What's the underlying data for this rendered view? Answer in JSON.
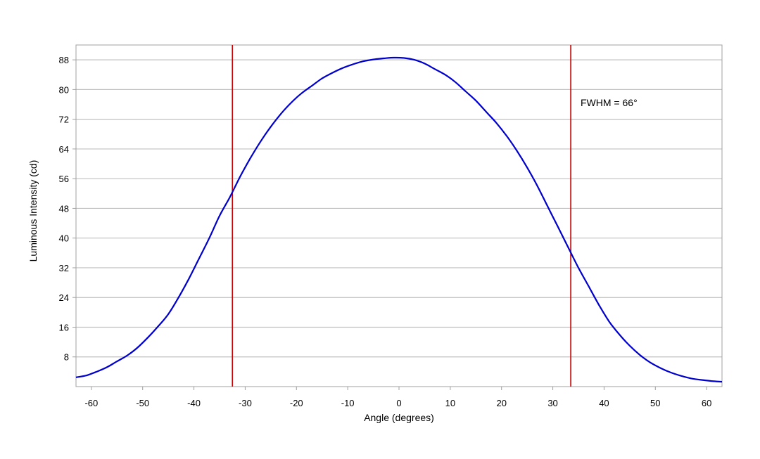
{
  "chart_data": {
    "type": "line",
    "xlabel": "Angle (degrees)",
    "ylabel": "Luminous Intensity (cd)",
    "xlim": [
      -63,
      63
    ],
    "ylim": [
      0,
      92
    ],
    "x_ticks": [
      -60,
      -50,
      -40,
      -30,
      -20,
      -10,
      0,
      10,
      20,
      30,
      40,
      50,
      60
    ],
    "y_ticks": [
      8,
      16,
      24,
      32,
      40,
      48,
      56,
      64,
      72,
      80,
      88
    ],
    "grid": "horizontal",
    "series": [
      {
        "color": "#0000cc",
        "x": [
          -63,
          -61,
          -59,
          -57,
          -55,
          -53,
          -51,
          -49,
          -47,
          -45,
          -43,
          -41,
          -39,
          -37,
          -35,
          -33,
          -31,
          -29,
          -27,
          -25,
          -23,
          -21,
          -19,
          -17,
          -15,
          -13,
          -11,
          -9,
          -7,
          -5,
          -3,
          -1,
          1,
          3,
          5,
          7,
          9,
          11,
          13,
          15,
          17,
          19,
          21,
          23,
          25,
          27,
          29,
          31,
          33,
          35,
          37,
          39,
          41,
          43,
          45,
          47,
          49,
          51,
          53,
          55,
          57,
          59,
          61,
          63
        ],
        "y": [
          2.5,
          3.0,
          4.0,
          5.2,
          6.8,
          8.4,
          10.5,
          13.2,
          16.2,
          19.5,
          24.0,
          29.0,
          34.5,
          40.0,
          46.0,
          51.0,
          56.5,
          61.5,
          66.0,
          70.0,
          73.5,
          76.5,
          79.0,
          81.0,
          83.0,
          84.5,
          85.8,
          86.8,
          87.6,
          88.1,
          88.4,
          88.6,
          88.5,
          88.0,
          87.0,
          85.5,
          84.0,
          82.0,
          79.5,
          77.0,
          74.0,
          71.0,
          67.5,
          63.5,
          59.0,
          54.0,
          48.5,
          43.0,
          37.5,
          32.0,
          27.0,
          22.0,
          17.5,
          14.0,
          11.0,
          8.5,
          6.5,
          5.0,
          3.8,
          2.9,
          2.2,
          1.8,
          1.5,
          1.3
        ]
      }
    ],
    "vertical_lines": [
      {
        "x": -32.5,
        "color": "#cc0000"
      },
      {
        "x": 33.5,
        "color": "#cc0000"
      }
    ],
    "annotations": [
      {
        "text": "FWHM = 66°"
      }
    ]
  }
}
